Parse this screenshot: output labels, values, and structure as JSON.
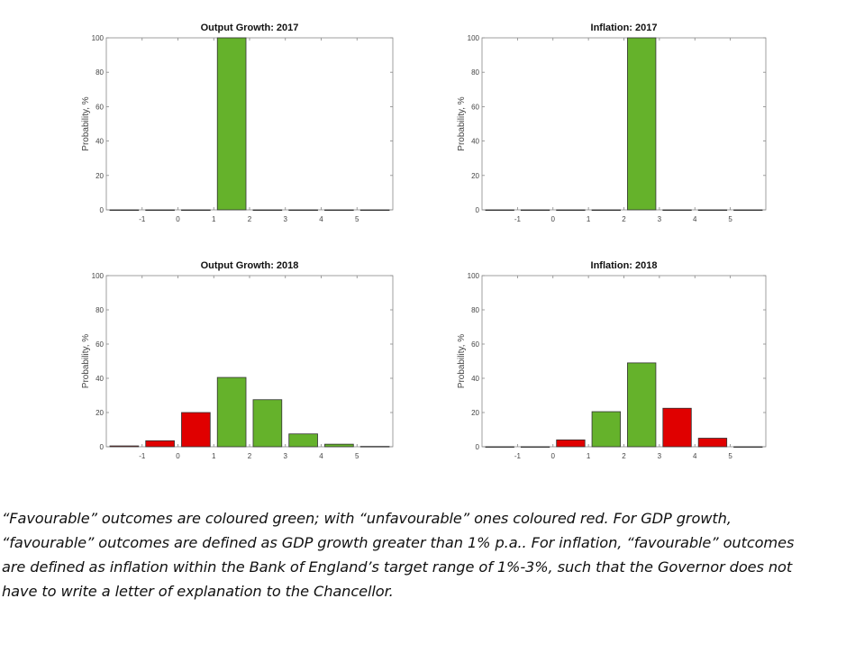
{
  "chart_data": [
    {
      "type": "bar",
      "title": "Output Growth: 2017",
      "ylabel": "Probability, %",
      "xlabel": "",
      "x": [
        -1.5,
        -0.5,
        0.5,
        1.5,
        2.5,
        3.5,
        4.5,
        5.5
      ],
      "values": [
        0,
        0,
        0,
        100,
        0,
        0,
        0,
        0
      ],
      "colors": [
        "#e00000",
        "#e00000",
        "#e00000",
        "#65b22b",
        "#65b22b",
        "#65b22b",
        "#65b22b",
        "#65b22b"
      ],
      "xlim": [
        -2,
        6
      ],
      "ylim": [
        0,
        100
      ],
      "xticks": [
        -1,
        0,
        1,
        2,
        3,
        4,
        5
      ],
      "yticks": [
        0,
        20,
        40,
        60,
        80,
        100
      ]
    },
    {
      "type": "bar",
      "title": "Inflation: 2017",
      "ylabel": "Probability, %",
      "xlabel": "",
      "x": [
        -1.5,
        -0.5,
        0.5,
        1.5,
        2.5,
        3.5,
        4.5,
        5.5
      ],
      "values": [
        0,
        0,
        0,
        0,
        100,
        0,
        0,
        0
      ],
      "colors": [
        "#e00000",
        "#e00000",
        "#e00000",
        "#65b22b",
        "#65b22b",
        "#e00000",
        "#e00000",
        "#e00000"
      ],
      "xlim": [
        -2,
        6
      ],
      "ylim": [
        0,
        100
      ],
      "xticks": [
        -1,
        0,
        1,
        2,
        3,
        4,
        5
      ],
      "yticks": [
        0,
        20,
        40,
        60,
        80,
        100
      ]
    },
    {
      "type": "bar",
      "title": "Output Growth: 2018",
      "ylabel": "Probability, %",
      "xlabel": "",
      "x": [
        -1.5,
        -0.5,
        0.5,
        1.5,
        2.5,
        3.5,
        4.5,
        5.5
      ],
      "values": [
        0.5,
        3.5,
        20,
        40.5,
        27.5,
        7.5,
        1.5,
        0.2
      ],
      "colors": [
        "#e00000",
        "#e00000",
        "#e00000",
        "#65b22b",
        "#65b22b",
        "#65b22b",
        "#65b22b",
        "#65b22b"
      ],
      "xlim": [
        -2,
        6
      ],
      "ylim": [
        0,
        100
      ],
      "xticks": [
        -1,
        0,
        1,
        2,
        3,
        4,
        5
      ],
      "yticks": [
        0,
        20,
        40,
        60,
        80,
        100
      ]
    },
    {
      "type": "bar",
      "title": "Inflation: 2018",
      "ylabel": "Probability, %",
      "xlabel": "",
      "x": [
        -1.5,
        -0.5,
        0.5,
        1.5,
        2.5,
        3.5,
        4.5,
        5.5
      ],
      "values": [
        0,
        0,
        4,
        20.5,
        49,
        22.5,
        5,
        0
      ],
      "colors": [
        "#e00000",
        "#e00000",
        "#e00000",
        "#65b22b",
        "#65b22b",
        "#e00000",
        "#e00000",
        "#e00000"
      ],
      "xlim": [
        -2,
        6
      ],
      "ylim": [
        0,
        100
      ],
      "xticks": [
        -1,
        0,
        1,
        2,
        3,
        4,
        5
      ],
      "yticks": [
        0,
        20,
        40,
        60,
        80,
        100
      ]
    }
  ],
  "caption": {
    "lines": [
      "“Favourable” outcomes are coloured green; with “unfavourable” ones coloured red. For GDP growth,",
      "“favourable” outcomes are defined as GDP growth greater than 1% p.a.. For inflation, “favourable” outcomes",
      "are defined as inflation within the Bank of England’s target range of 1%-3%, such that the Governor does not",
      "have to write a letter of explanation to the Chancellor."
    ]
  }
}
